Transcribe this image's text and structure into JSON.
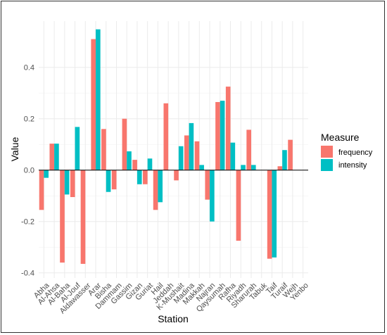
{
  "chart_data": {
    "type": "bar",
    "xlabel": "Station",
    "ylabel": "Value",
    "ylim": [
      -0.42,
      0.58
    ],
    "yticks": [
      -0.4,
      -0.2,
      0.0,
      0.2,
      0.4
    ],
    "ytick_labels": [
      "-0.4",
      "-0.2",
      "0.0",
      "0.2",
      "0.4"
    ],
    "grid": true,
    "legend": {
      "title": "Measure",
      "position": "right"
    },
    "categories": [
      "Abha",
      "Al-Ahsa",
      "Al-Baha",
      "Al-Jouf",
      "Aldawasser",
      "Arar",
      "Bisha",
      "Dammam",
      "Gassim",
      "Gizan",
      "Guriat",
      "Hail",
      "Jeddah",
      "K-Mushait",
      "Madina",
      "Makkah",
      "Najran",
      "Qaysumah",
      "Rafha",
      "Riyadh",
      "Sharurah",
      "Tabuk",
      "Taif",
      "Turaif",
      "Wejh",
      "Yenbo"
    ],
    "series": [
      {
        "name": "frequency",
        "color": "#F8766D",
        "values": [
          -0.155,
          0.103,
          -0.36,
          -0.105,
          -0.365,
          0.51,
          0.16,
          -0.075,
          0.2,
          0.04,
          -0.055,
          -0.155,
          0.26,
          -0.04,
          0.135,
          0.112,
          -0.115,
          0.265,
          0.325,
          -0.275,
          0.157,
          0.0,
          -0.345,
          0.015,
          0.118,
          0.0
        ]
      },
      {
        "name": "intensity",
        "color": "#00BFC4",
        "values": [
          -0.03,
          0.103,
          -0.095,
          0.168,
          0.0,
          0.548,
          -0.085,
          0.0,
          0.073,
          -0.055,
          0.045,
          -0.125,
          0.0,
          0.093,
          0.183,
          0.02,
          -0.2,
          0.27,
          0.107,
          0.02,
          0.02,
          0.0,
          -0.34,
          0.078,
          0.0,
          0.0
        ]
      }
    ]
  }
}
